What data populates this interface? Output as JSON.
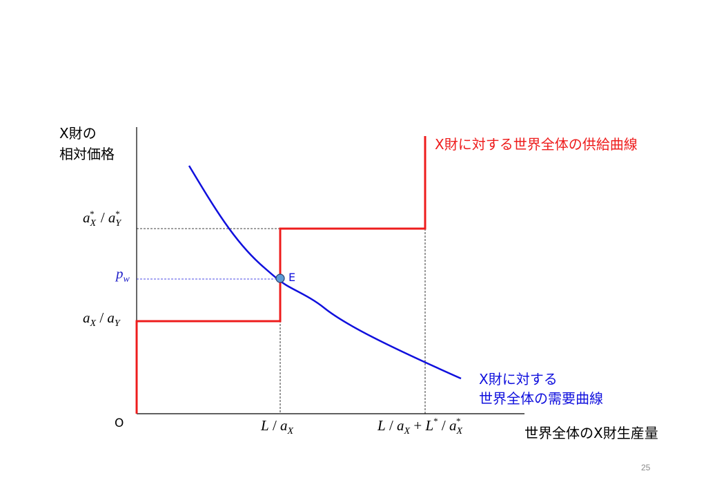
{
  "axes": {
    "y_title_line1": "X財の",
    "y_title_line2": "相対価格",
    "x_title": "世界全体のX財生産量",
    "origin": "O"
  },
  "y_ticks": {
    "upper": {
      "a1": "a",
      "s1": "X",
      "star1": "*",
      "sep": " / ",
      "a2": "a",
      "s2": "Y",
      "star2": "*"
    },
    "pw": {
      "p": "p",
      "sub": "w"
    },
    "lower": {
      "a1": "a",
      "s1": "X",
      "sep": " / ",
      "a2": "a",
      "s2": "Y"
    }
  },
  "x_ticks": {
    "first": {
      "L": "L",
      "sep": " / ",
      "a": "a",
      "s": "X"
    },
    "second": {
      "L": "L",
      "sep1": " / ",
      "a": "a",
      "s": "X",
      "plus": " + ",
      "L2": "L",
      "star": "*",
      "sep2": " / ",
      "a2": "a",
      "s2": "X",
      "star2": "*"
    }
  },
  "curves": {
    "supply_label": "X財に対する世界全体の供給曲線",
    "demand_label_line1": "X財に対する",
    "demand_label_line2": "世界全体の需要曲線",
    "equilibrium_label": "E"
  },
  "colors": {
    "supply": "#ee1c1c",
    "demand": "#1010dd",
    "pw_text": "#1f1fc8",
    "point_fill": "#5b9bd5",
    "axis": "#000000"
  },
  "page_number": "25"
}
